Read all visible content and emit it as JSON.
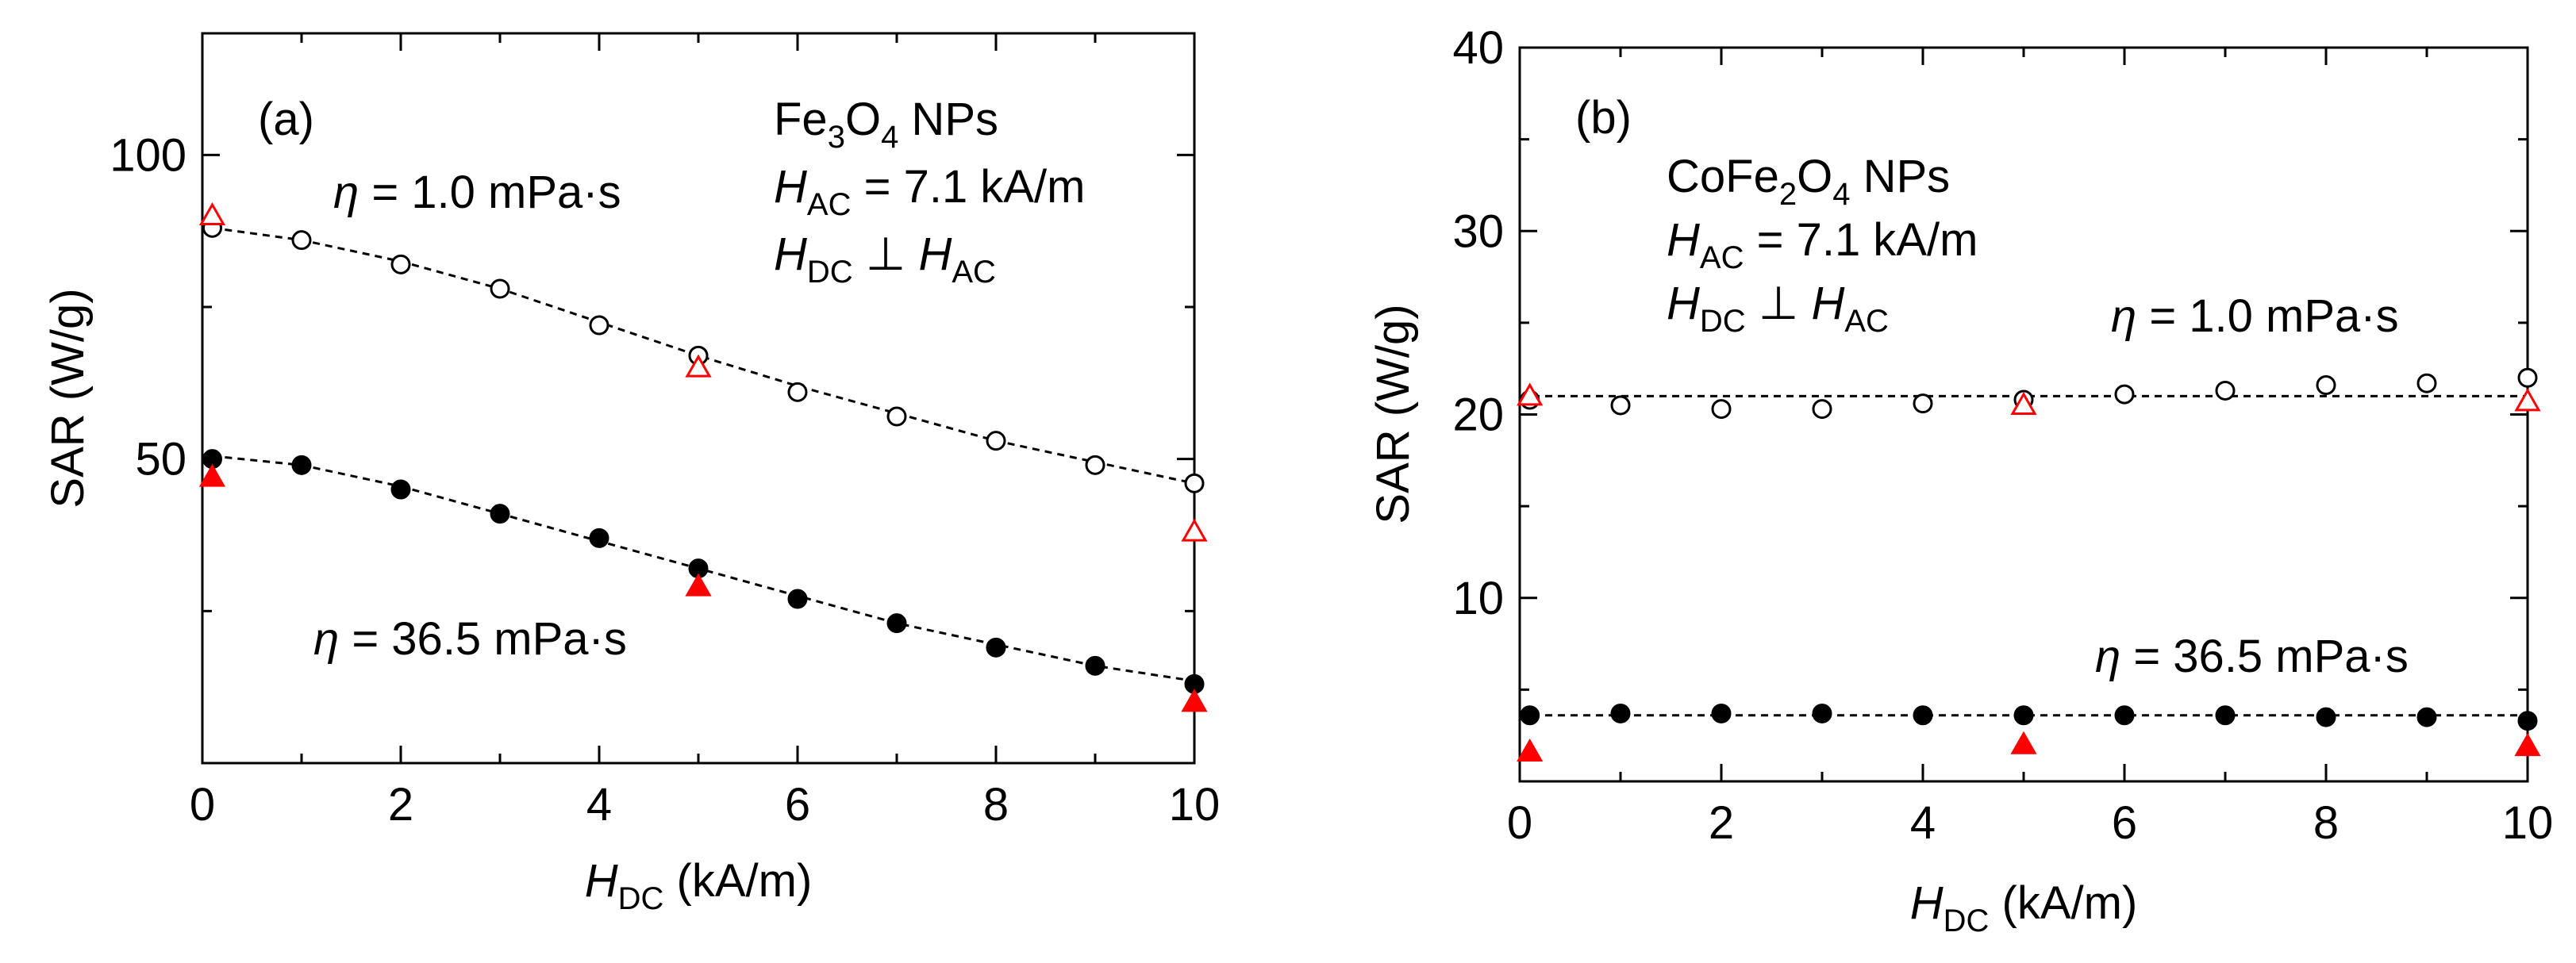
{
  "chart_data": [
    {
      "type": "scatter",
      "panel_label": "(a)",
      "title_lines": {
        "material_main": "Fe",
        "material_sub1": "3",
        "material_mid": "O",
        "material_sub2": "4",
        "material_suffix": " NPs",
        "hac_symbol": "H",
        "hac_sub": "AC",
        "hac_value": " = 7.1 kA/m",
        "hdc_symbol": "H",
        "hdc_sub": "DC",
        "perp": " ⊥ ",
        "hac2_symbol": "H",
        "hac2_sub": "AC"
      },
      "xlabel": {
        "symbol": "H",
        "sub": "DC",
        "unit": " (kA/m)"
      },
      "ylabel": "SAR (W/g)",
      "xlim": [
        0,
        10
      ],
      "ylim": [
        0,
        120
      ],
      "xticks": [
        0,
        2,
        4,
        6,
        8,
        10
      ],
      "yticks": [
        50,
        100
      ],
      "ytick_minor": [
        0,
        50,
        100
      ],
      "viscosity_labels": [
        {
          "eta": "η",
          "text": " = 1.0 mPa·s"
        },
        {
          "eta": "η",
          "text": " = 36.5 mPa·s"
        }
      ],
      "series": [
        {
          "name": "η = 1.0 mPa·s (circles)",
          "marker": "circle-open",
          "color": "#000000",
          "x": [
            0.1,
            1,
            2,
            3,
            4,
            5,
            6,
            7,
            8,
            9,
            10
          ],
          "y": [
            88,
            86,
            82,
            78,
            72,
            67,
            61,
            57,
            53,
            49,
            46
          ]
        },
        {
          "name": "η = 36.5 mPa·s (circles)",
          "marker": "circle-filled",
          "color": "#000000",
          "x": [
            0.1,
            1,
            2,
            3,
            4,
            5,
            6,
            7,
            8,
            9,
            10
          ],
          "y": [
            50,
            49,
            45,
            41,
            37,
            32,
            27,
            23,
            19,
            16,
            13
          ]
        },
        {
          "name": "η = 1.0 mPa·s (triangles)",
          "marker": "triangle-open",
          "color": "#ff0000",
          "x": [
            0.1,
            5,
            10
          ],
          "y": [
            90,
            65,
            38
          ]
        },
        {
          "name": "η = 36.5 mPa·s (triangles)",
          "marker": "triangle-filled",
          "color": "#ff0000",
          "x": [
            0.1,
            5,
            10
          ],
          "y": [
            47,
            29,
            10
          ]
        }
      ],
      "fits": [
        {
          "x": [
            0.1,
            1,
            2,
            3,
            4,
            5,
            6,
            7,
            8,
            9,
            10
          ],
          "y": [
            88,
            86,
            82.5,
            78,
            72.5,
            67,
            62,
            57.5,
            53,
            49.5,
            46
          ]
        },
        {
          "x": [
            0.1,
            1,
            2,
            3,
            4,
            5,
            6,
            7,
            8,
            9,
            10
          ],
          "y": [
            50.5,
            49,
            45.5,
            41,
            36.5,
            32,
            27.5,
            23,
            19.5,
            16,
            13.5
          ]
        }
      ]
    },
    {
      "type": "scatter",
      "panel_label": "(b)",
      "title_lines": {
        "material_main": "CoFe",
        "material_sub1": "2",
        "material_mid": "O",
        "material_sub2": "4",
        "material_suffix": " NPs",
        "hac_symbol": "H",
        "hac_sub": "AC",
        "hac_value": " = 7.1 kA/m",
        "hdc_symbol": "H",
        "hdc_sub": "DC",
        "perp": " ⊥ ",
        "hac2_symbol": "H",
        "hac2_sub": "AC"
      },
      "xlabel": {
        "symbol": "H",
        "sub": "DC",
        "unit": " (kA/m)"
      },
      "ylabel": "SAR (W/g)",
      "xlim": [
        0,
        10
      ],
      "ylim": [
        0,
        40
      ],
      "xticks": [
        0,
        2,
        4,
        6,
        8,
        10
      ],
      "yticks": [
        10,
        20,
        30,
        40
      ],
      "viscosity_labels": [
        {
          "eta": "η",
          "text": " = 1.0 mPa·s"
        },
        {
          "eta": "η",
          "text": " = 36.5 mPa·s"
        }
      ],
      "series": [
        {
          "name": "η = 1.0 mPa·s (circles)",
          "marker": "circle-open",
          "color": "#000000",
          "x": [
            0.1,
            1,
            2,
            3,
            4,
            5,
            6,
            7,
            8,
            9,
            10
          ],
          "y": [
            20.8,
            20.5,
            20.3,
            20.3,
            20.6,
            20.8,
            21.1,
            21.3,
            21.6,
            21.7,
            22.0
          ]
        },
        {
          "name": "η = 36.5 mPa·s (circles)",
          "marker": "circle-filled",
          "color": "#000000",
          "x": [
            0.1,
            1,
            2,
            3,
            4,
            5,
            6,
            7,
            8,
            9,
            10
          ],
          "y": [
            3.6,
            3.7,
            3.7,
            3.7,
            3.6,
            3.6,
            3.6,
            3.6,
            3.5,
            3.5,
            3.3
          ]
        },
        {
          "name": "η = 1.0 mPa·s (triangles)",
          "marker": "triangle-open",
          "color": "#ff0000",
          "x": [
            0.1,
            5,
            10
          ],
          "y": [
            21.0,
            20.5,
            20.7
          ]
        },
        {
          "name": "η = 36.5 mPa·s (triangles)",
          "marker": "triangle-filled",
          "color": "#ff0000",
          "x": [
            0.1,
            5,
            10
          ],
          "y": [
            1.6,
            2.0,
            1.9
          ]
        }
      ],
      "fits": [
        {
          "x": [
            0,
            10
          ],
          "y": [
            21.0,
            21.0
          ]
        },
        {
          "x": [
            0,
            10
          ],
          "y": [
            3.6,
            3.6
          ]
        }
      ]
    }
  ]
}
